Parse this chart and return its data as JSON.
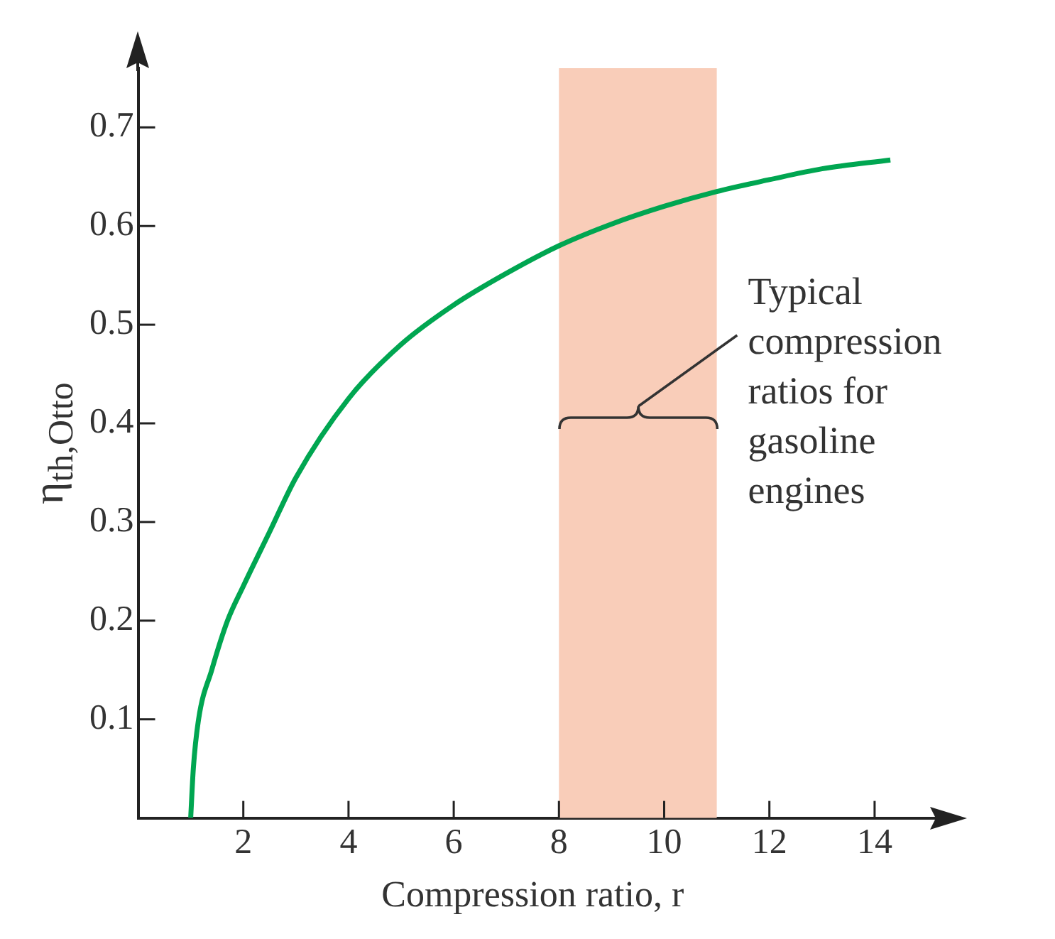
{
  "chart_data": {
    "type": "line",
    "xlabel": "Compression ratio, r",
    "ylabel": "η$_{th,Otto}$",
    "series": [
      {
        "color": "#00a651",
        "x": [
          1,
          1.05,
          1.15,
          1.4,
          1.7,
          2,
          2.5,
          3,
          4,
          5,
          6,
          7,
          8,
          9,
          10,
          11,
          12,
          13,
          14.3
        ],
        "values": [
          0,
          0.05,
          0.1,
          0.15,
          0.2,
          0.235,
          0.29,
          0.345,
          0.425,
          0.48,
          0.52,
          0.552,
          0.58,
          0.602,
          0.62,
          0.635,
          0.647,
          0.658,
          0.667
        ]
      }
    ],
    "xlim": [
      0,
      15
    ],
    "ylim": [
      0,
      0.76
    ],
    "xticks": [
      2,
      4,
      6,
      8,
      10,
      12,
      14
    ],
    "yticks": [
      0.1,
      0.2,
      0.3,
      0.4,
      0.5,
      0.6,
      0.7
    ],
    "bands": [
      {
        "axis": "x",
        "from": 8,
        "to": 11,
        "label": "Typical compression ratios for gasoline engines",
        "color": "#f9cdb9"
      }
    ],
    "marker": "none",
    "line_style": "solid",
    "legend": false
  }
}
